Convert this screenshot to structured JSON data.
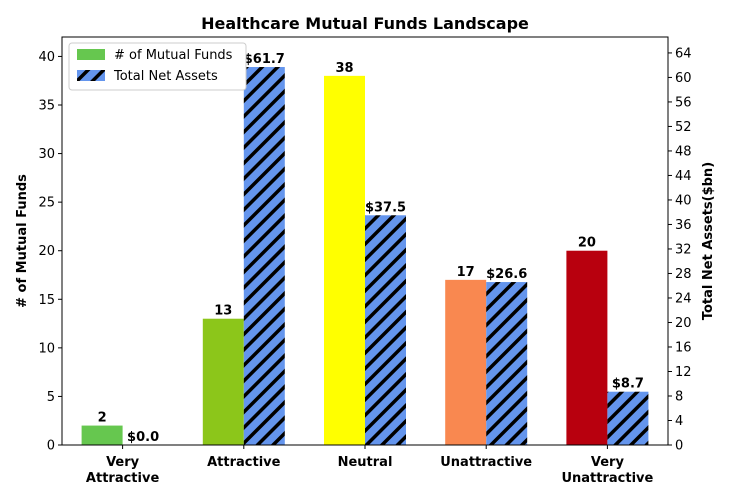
{
  "chart_data": {
    "type": "bar",
    "title": "Healthcare Mutual Funds Landscape",
    "categories": [
      [
        "Very",
        "Attractive"
      ],
      [
        "Attractive"
      ],
      [
        "Neutral"
      ],
      [
        "Unattractive"
      ],
      [
        "Very",
        "Unattractive"
      ]
    ],
    "ylabel": "# of Mutual Funds",
    "y2label": "Total Net Assets($bn)",
    "ylim": [
      0,
      42
    ],
    "y2lim": [
      0,
      66.6
    ],
    "yticks": [
      0,
      5,
      10,
      15,
      20,
      25,
      30,
      35,
      40
    ],
    "y2ticks": [
      0,
      4,
      8,
      12,
      16,
      20,
      24,
      28,
      32,
      36,
      40,
      44,
      48,
      52,
      56,
      60,
      64
    ],
    "legend_position": "top-left",
    "series": [
      {
        "name": "# of Mutual Funds",
        "axis": "left",
        "values": [
          2,
          13,
          38,
          17,
          20
        ],
        "labels": [
          "2",
          "13",
          "38",
          "17",
          "20"
        ],
        "colors": [
          "#66c74f",
          "#8cc61a",
          "#ffff00",
          "#f98850",
          "#b8000e"
        ],
        "legend_color": "#66c74f"
      },
      {
        "name": "Total Net Assets",
        "axis": "right",
        "values": [
          0.0,
          61.7,
          37.5,
          26.6,
          8.7
        ],
        "labels": [
          "$0.0",
          "$61.7",
          "$37.5",
          "$26.6",
          "$8.7"
        ],
        "color": "#6495ed",
        "hatch": "diagonal"
      }
    ]
  }
}
